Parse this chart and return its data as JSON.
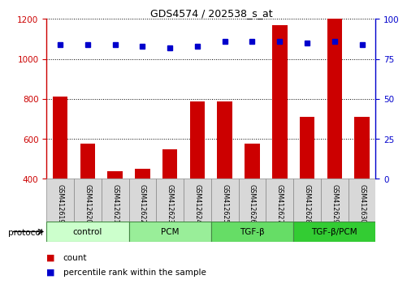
{
  "title": "GDS4574 / 202538_s_at",
  "samples": [
    "GSM412619",
    "GSM412620",
    "GSM412621",
    "GSM412622",
    "GSM412623",
    "GSM412624",
    "GSM412625",
    "GSM412626",
    "GSM412627",
    "GSM412628",
    "GSM412629",
    "GSM412630"
  ],
  "counts": [
    810,
    575,
    435,
    450,
    545,
    785,
    785,
    575,
    1170,
    710,
    1200,
    710
  ],
  "percentile_ranks": [
    84,
    84,
    84,
    83,
    82,
    83,
    86,
    86,
    86,
    85,
    86,
    84
  ],
  "ylim_left": [
    400,
    1200
  ],
  "ylim_right": [
    0,
    100
  ],
  "yticks_left": [
    400,
    600,
    800,
    1000,
    1200
  ],
  "yticks_right": [
    0,
    25,
    50,
    75,
    100
  ],
  "bar_color": "#cc0000",
  "dot_color": "#0000cc",
  "groups": [
    {
      "label": "control",
      "start": 0,
      "end": 3,
      "color": "#ccffcc"
    },
    {
      "label": "PCM",
      "start": 3,
      "end": 6,
      "color": "#99ee99"
    },
    {
      "label": "TGF-β",
      "start": 6,
      "end": 9,
      "color": "#66dd66"
    },
    {
      "label": "TGF-β/PCM",
      "start": 9,
      "end": 12,
      "color": "#33cc33"
    }
  ],
  "protocol_label": "protocol",
  "legend_count_label": "count",
  "legend_pct_label": "percentile rank within the sample",
  "left_axis_color": "#cc0000",
  "right_axis_color": "#0000cc",
  "bar_bottom": 400
}
